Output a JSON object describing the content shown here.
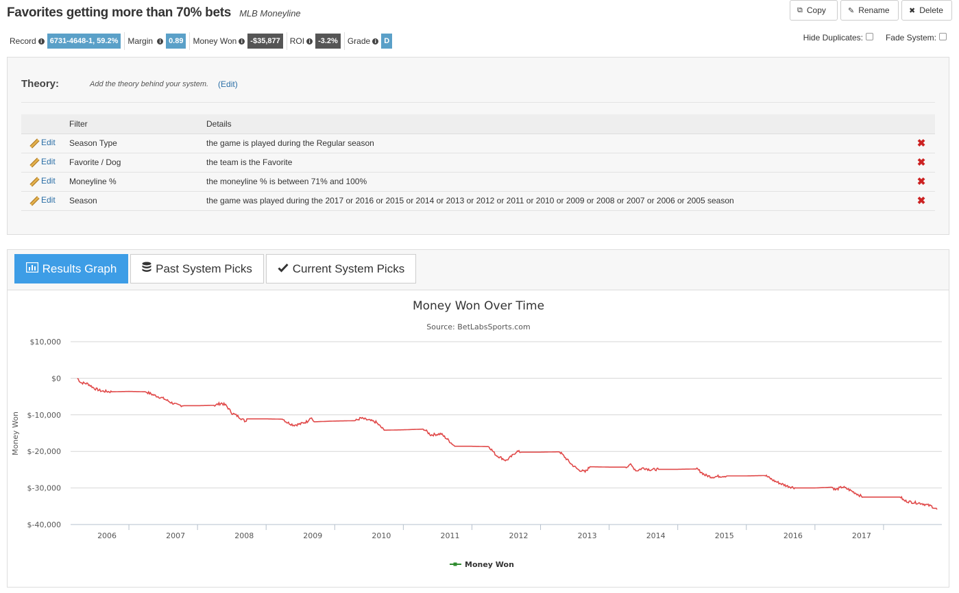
{
  "header": {
    "title": "Favorites getting more than 70% bets",
    "subtitle": "MLB Moneyline",
    "copy_label": "Copy",
    "rename_label": "Rename",
    "delete_label": "Delete"
  },
  "stats": {
    "record_label": "Record",
    "record_value": "6731-4648-1, 59.2%",
    "margin_label": "Margin",
    "margin_value": "0.89",
    "money_label": "Money Won",
    "money_value": "-$35,877",
    "roi_label": "ROI",
    "roi_value": "-3.2%",
    "grade_label": "Grade",
    "grade_value": "D"
  },
  "options": {
    "hide_duplicates": "Hide Duplicates:",
    "fade_system": "Fade System:"
  },
  "theory": {
    "label": "Theory:",
    "text": "Add the theory behind your system.",
    "edit": "(Edit)"
  },
  "filters": {
    "header_filter": "Filter",
    "header_details": "Details",
    "edit_label": "Edit",
    "rows": [
      {
        "filter": "Season Type",
        "details": "the game is played during the Regular season"
      },
      {
        "filter": "Favorite / Dog",
        "details": "the team is the Favorite"
      },
      {
        "filter": "Moneyline %",
        "details": "the moneyline % is between 71% and 100%"
      },
      {
        "filter": "Season",
        "details": "the game was played during the 2017 or 2016 or 2015 or 2014 or 2013 or 2012 or 2011 or 2010 or 2009 or 2008 or 2007 or 2006 or 2005 season"
      }
    ]
  },
  "tabs": [
    {
      "label": "Results Graph",
      "icon": "bar-chart-icon"
    },
    {
      "label": "Past System Picks",
      "icon": "database-icon"
    },
    {
      "label": "Current System Picks",
      "icon": "check-icon"
    }
  ],
  "chart_data": {
    "type": "line",
    "title": "Money Won Over Time",
    "subtitle": "Source: BetLabsSports.com",
    "ylabel": "Money Won",
    "xlabel": "",
    "ylim": [
      -40000,
      10000
    ],
    "yticks": [
      10000,
      0,
      -10000,
      -20000,
      -30000,
      -40000
    ],
    "ytick_labels": [
      "$10,000",
      "$0",
      "$-10,000",
      "$-20,000",
      "$-30,000",
      "$-40,000"
    ],
    "xlim": [
      2005.15,
      2017.85
    ],
    "xticks": [
      2006,
      2007,
      2008,
      2009,
      2010,
      2011,
      2012,
      2013,
      2014,
      2015,
      2016,
      2017
    ],
    "legend_position": "bottom-center",
    "grid": true,
    "series": [
      {
        "name": "Money Won",
        "color": "#e04848",
        "legend_color": "#2e8b2e",
        "x": [
          2005.25,
          2005.3,
          2005.4,
          2005.5,
          2005.6,
          2005.75,
          2006.0,
          2006.25,
          2006.35,
          2006.5,
          2006.6,
          2006.7,
          2006.8,
          2007.0,
          2007.25,
          2007.35,
          2007.42,
          2007.5,
          2007.6,
          2007.7,
          2007.72,
          2008.0,
          2008.25,
          2008.3,
          2008.4,
          2008.5,
          2008.6,
          2008.65,
          2008.7,
          2009.0,
          2009.3,
          2009.38,
          2009.5,
          2009.6,
          2009.72,
          2010.0,
          2010.3,
          2010.4,
          2010.55,
          2010.65,
          2010.75,
          2011.0,
          2011.25,
          2011.35,
          2011.5,
          2011.6,
          2011.65,
          2011.72,
          2012.0,
          2012.28,
          2012.35,
          2012.45,
          2012.55,
          2012.65,
          2012.72,
          2013.0,
          2013.25,
          2013.3,
          2013.4,
          2013.5,
          2013.6,
          2013.72,
          2014.0,
          2014.28,
          2014.4,
          2014.5,
          2014.6,
          2014.72,
          2015.0,
          2015.28,
          2015.4,
          2015.5,
          2015.6,
          2015.72,
          2016.0,
          2016.25,
          2016.3,
          2016.4,
          2016.5,
          2016.6,
          2016.7,
          2017.0,
          2017.25,
          2017.3,
          2017.45,
          2017.55,
          2017.7,
          2017.78
        ],
        "y": [
          0,
          -1200,
          -1500,
          -2800,
          -3500,
          -3700,
          -3600,
          -3700,
          -4500,
          -5500,
          -6500,
          -7300,
          -7500,
          -7500,
          -7400,
          -6800,
          -7500,
          -9500,
          -10500,
          -11800,
          -11100,
          -11100,
          -11200,
          -12000,
          -12800,
          -12500,
          -11800,
          -10600,
          -11900,
          -11700,
          -11600,
          -10900,
          -11500,
          -12000,
          -14200,
          -14100,
          -13900,
          -15500,
          -15200,
          -16800,
          -18600,
          -18600,
          -18700,
          -21000,
          -22500,
          -21000,
          -20000,
          -20200,
          -20200,
          -20100,
          -21500,
          -23500,
          -25000,
          -25600,
          -24200,
          -24300,
          -24300,
          -23500,
          -25300,
          -24500,
          -25000,
          -24900,
          -24900,
          -24800,
          -26500,
          -27000,
          -26800,
          -26700,
          -26700,
          -26600,
          -28000,
          -28800,
          -29500,
          -30000,
          -30000,
          -29800,
          -30500,
          -29700,
          -30500,
          -31500,
          -32500,
          -32500,
          -32500,
          -33500,
          -34000,
          -34200,
          -35000,
          -35877
        ]
      }
    ]
  }
}
